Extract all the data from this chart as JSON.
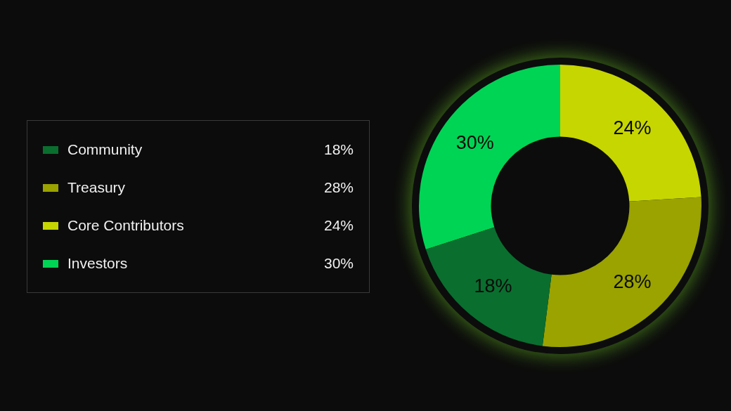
{
  "chart_data": {
    "type": "donut",
    "categories": [
      "Community",
      "Treasury",
      "Core Contributors",
      "Investors"
    ],
    "values": [
      18,
      28,
      24,
      30
    ],
    "value_labels": [
      "18%",
      "28%",
      "24%",
      "30%"
    ],
    "colors": [
      "#0a6e2f",
      "#9aa300",
      "#c6d600",
      "#00d455"
    ],
    "legend": "left"
  }
}
